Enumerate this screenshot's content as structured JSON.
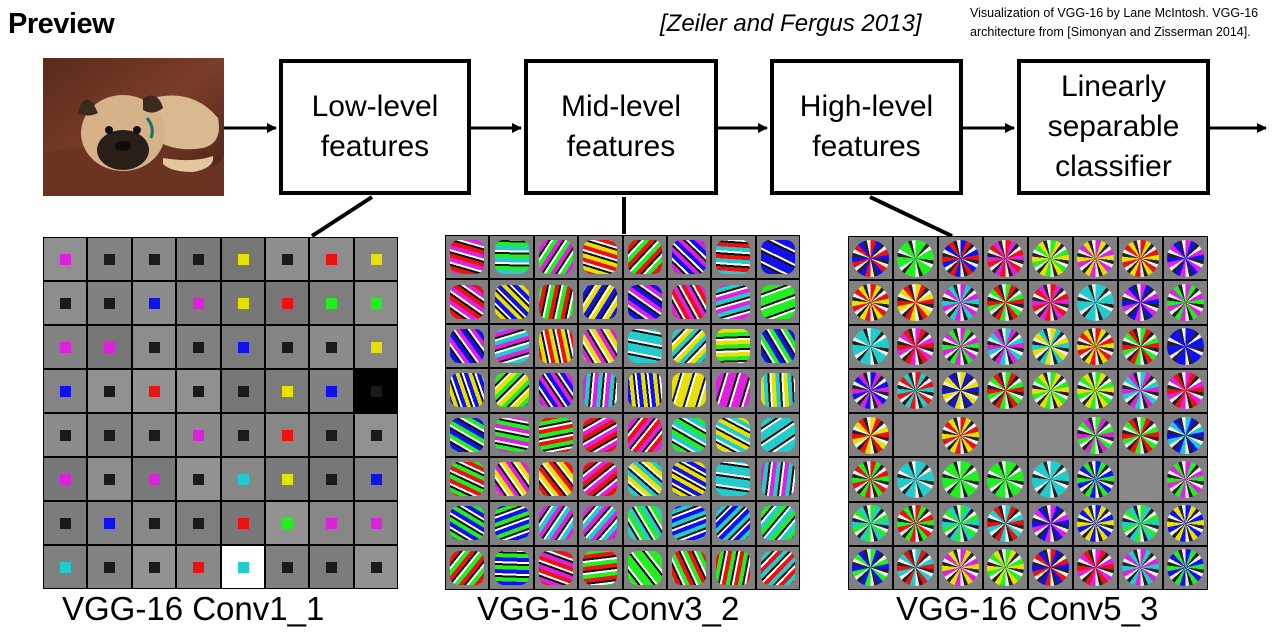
{
  "header": {
    "title": "Preview",
    "citation": "[Zeiler and Fergus 2013]",
    "credit": "Visualization of VGG-16 by Lane McIntosh. VGG-16 architecture from [Simonyan and Zisserman 2014]."
  },
  "stages": [
    {
      "label": "Low-level\nfeatures"
    },
    {
      "label": "Mid-level\nfeatures"
    },
    {
      "label": "High-level\nfeatures"
    },
    {
      "label": "Linearly\nseparable\nclassifier"
    }
  ],
  "panels": [
    {
      "caption": "VGG-16 Conv1_1",
      "rows": 8,
      "cols": 8
    },
    {
      "caption": "VGG-16 Conv3_2",
      "rows": 8,
      "cols": 8
    },
    {
      "caption": "VGG-16 Conv5_3",
      "rows": 8,
      "cols": 8
    }
  ],
  "colors": {
    "filter_background": "#808080",
    "grid_border": "#000000",
    "accents": [
      "#e8e000",
      "#ee1111",
      "#dd22dd",
      "#22ee22",
      "#1111ee",
      "#22cccc",
      "#ffffff",
      "#000000"
    ]
  }
}
